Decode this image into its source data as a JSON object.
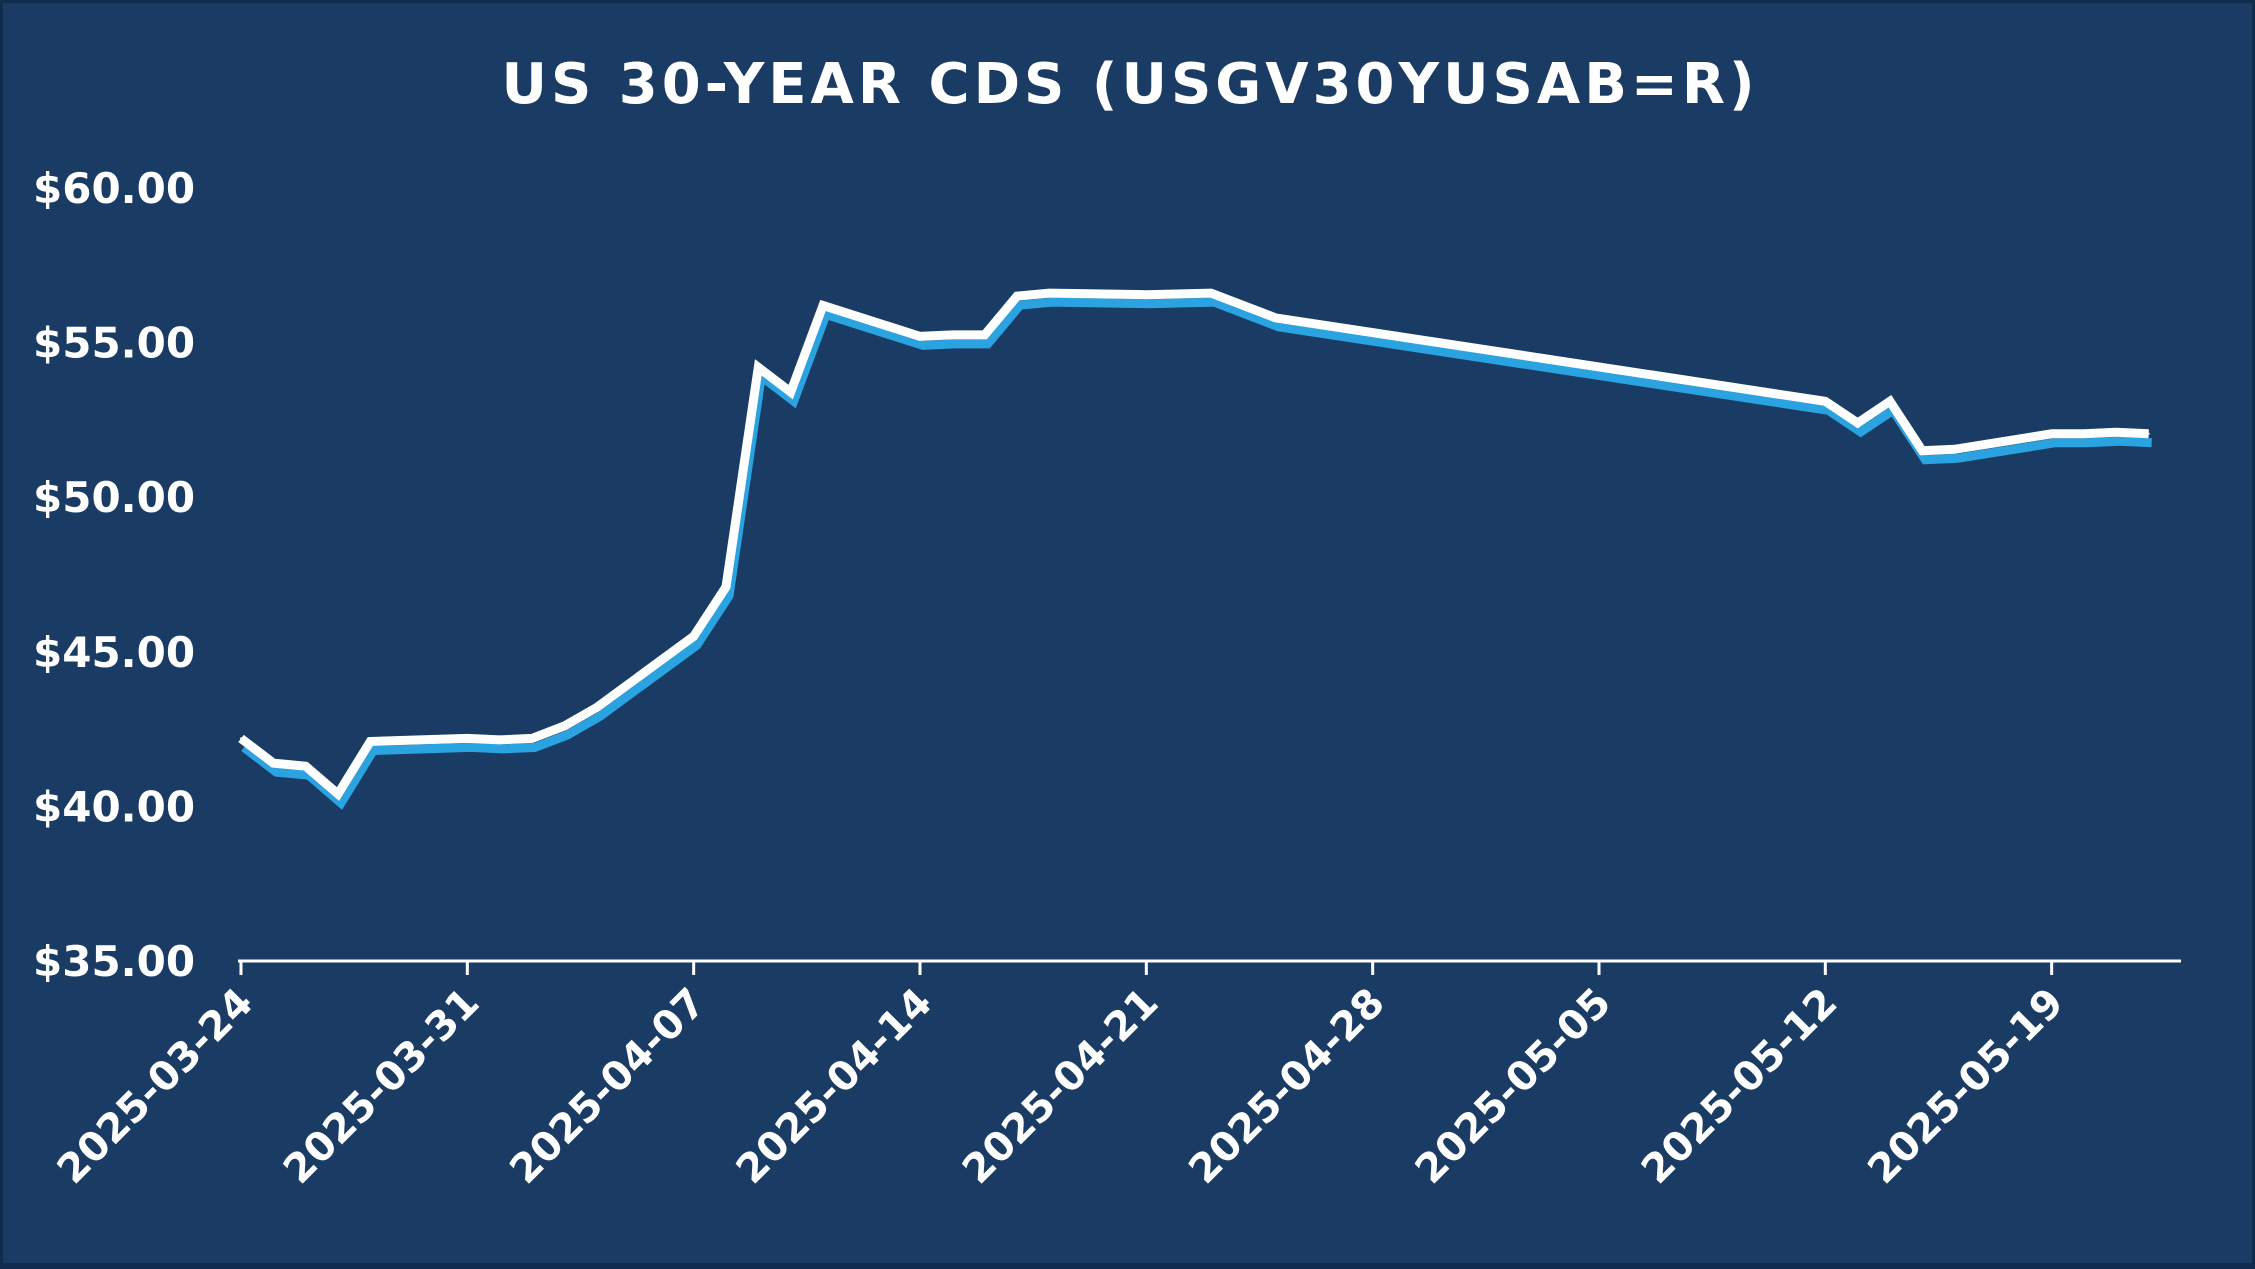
{
  "chart_data": {
    "type": "line",
    "title": "US 30-YEAR CDS (USGV30YUSAB=R)",
    "xlabel": "",
    "ylabel": "",
    "ylim": [
      35,
      60
    ],
    "xlim": [
      "2025-03-24",
      "2025-05-23"
    ],
    "yticks": [
      "$35.00",
      "$40.00",
      "$45.00",
      "$50.00",
      "$55.00",
      "$60.00"
    ],
    "ytick_values": [
      35,
      40,
      45,
      50,
      55,
      60
    ],
    "xticks": [
      "2025-03-24",
      "2025-03-31",
      "2025-04-07",
      "2025-04-14",
      "2025-04-21",
      "2025-04-28",
      "2025-05-05",
      "2025-05-12",
      "2025-05-19"
    ],
    "grid": false,
    "legend": "none",
    "colors": {
      "background": "#1a3c64",
      "border": "#0f2c4f",
      "line": "#ffffff",
      "shadow": "#2aa3e0",
      "drop_lines": "#ffffff"
    },
    "series": [
      {
        "x": [
          "2025-03-24",
          "2025-03-25",
          "2025-03-26",
          "2025-03-27",
          "2025-03-28",
          "2025-03-31",
          "2025-04-01",
          "2025-04-02",
          "2025-04-03",
          "2025-04-04",
          "2025-04-07",
          "2025-04-08",
          "2025-04-09",
          "2025-04-10",
          "2025-04-11",
          "2025-04-14",
          "2025-04-15",
          "2025-04-16",
          "2025-04-17",
          "2025-04-18",
          "2025-04-21",
          "2025-04-23",
          "2025-04-25",
          "2025-05-12",
          "2025-05-13",
          "2025-05-14",
          "2025-05-15",
          "2025-05-16",
          "2025-05-19",
          "2025-05-20",
          "2025-05-21",
          "2025-05-22"
        ],
        "values": [
          42.2,
          41.4,
          41.3,
          40.4,
          42.1,
          42.2,
          42.15,
          42.2,
          42.6,
          43.2,
          45.5,
          47.1,
          54.2,
          53.4,
          56.2,
          55.2,
          55.25,
          55.25,
          56.5,
          56.6,
          56.55,
          56.6,
          55.8,
          53.1,
          52.4,
          53.1,
          51.5,
          51.55,
          52.05,
          52.05,
          52.1,
          52.05
        ]
      }
    ]
  }
}
